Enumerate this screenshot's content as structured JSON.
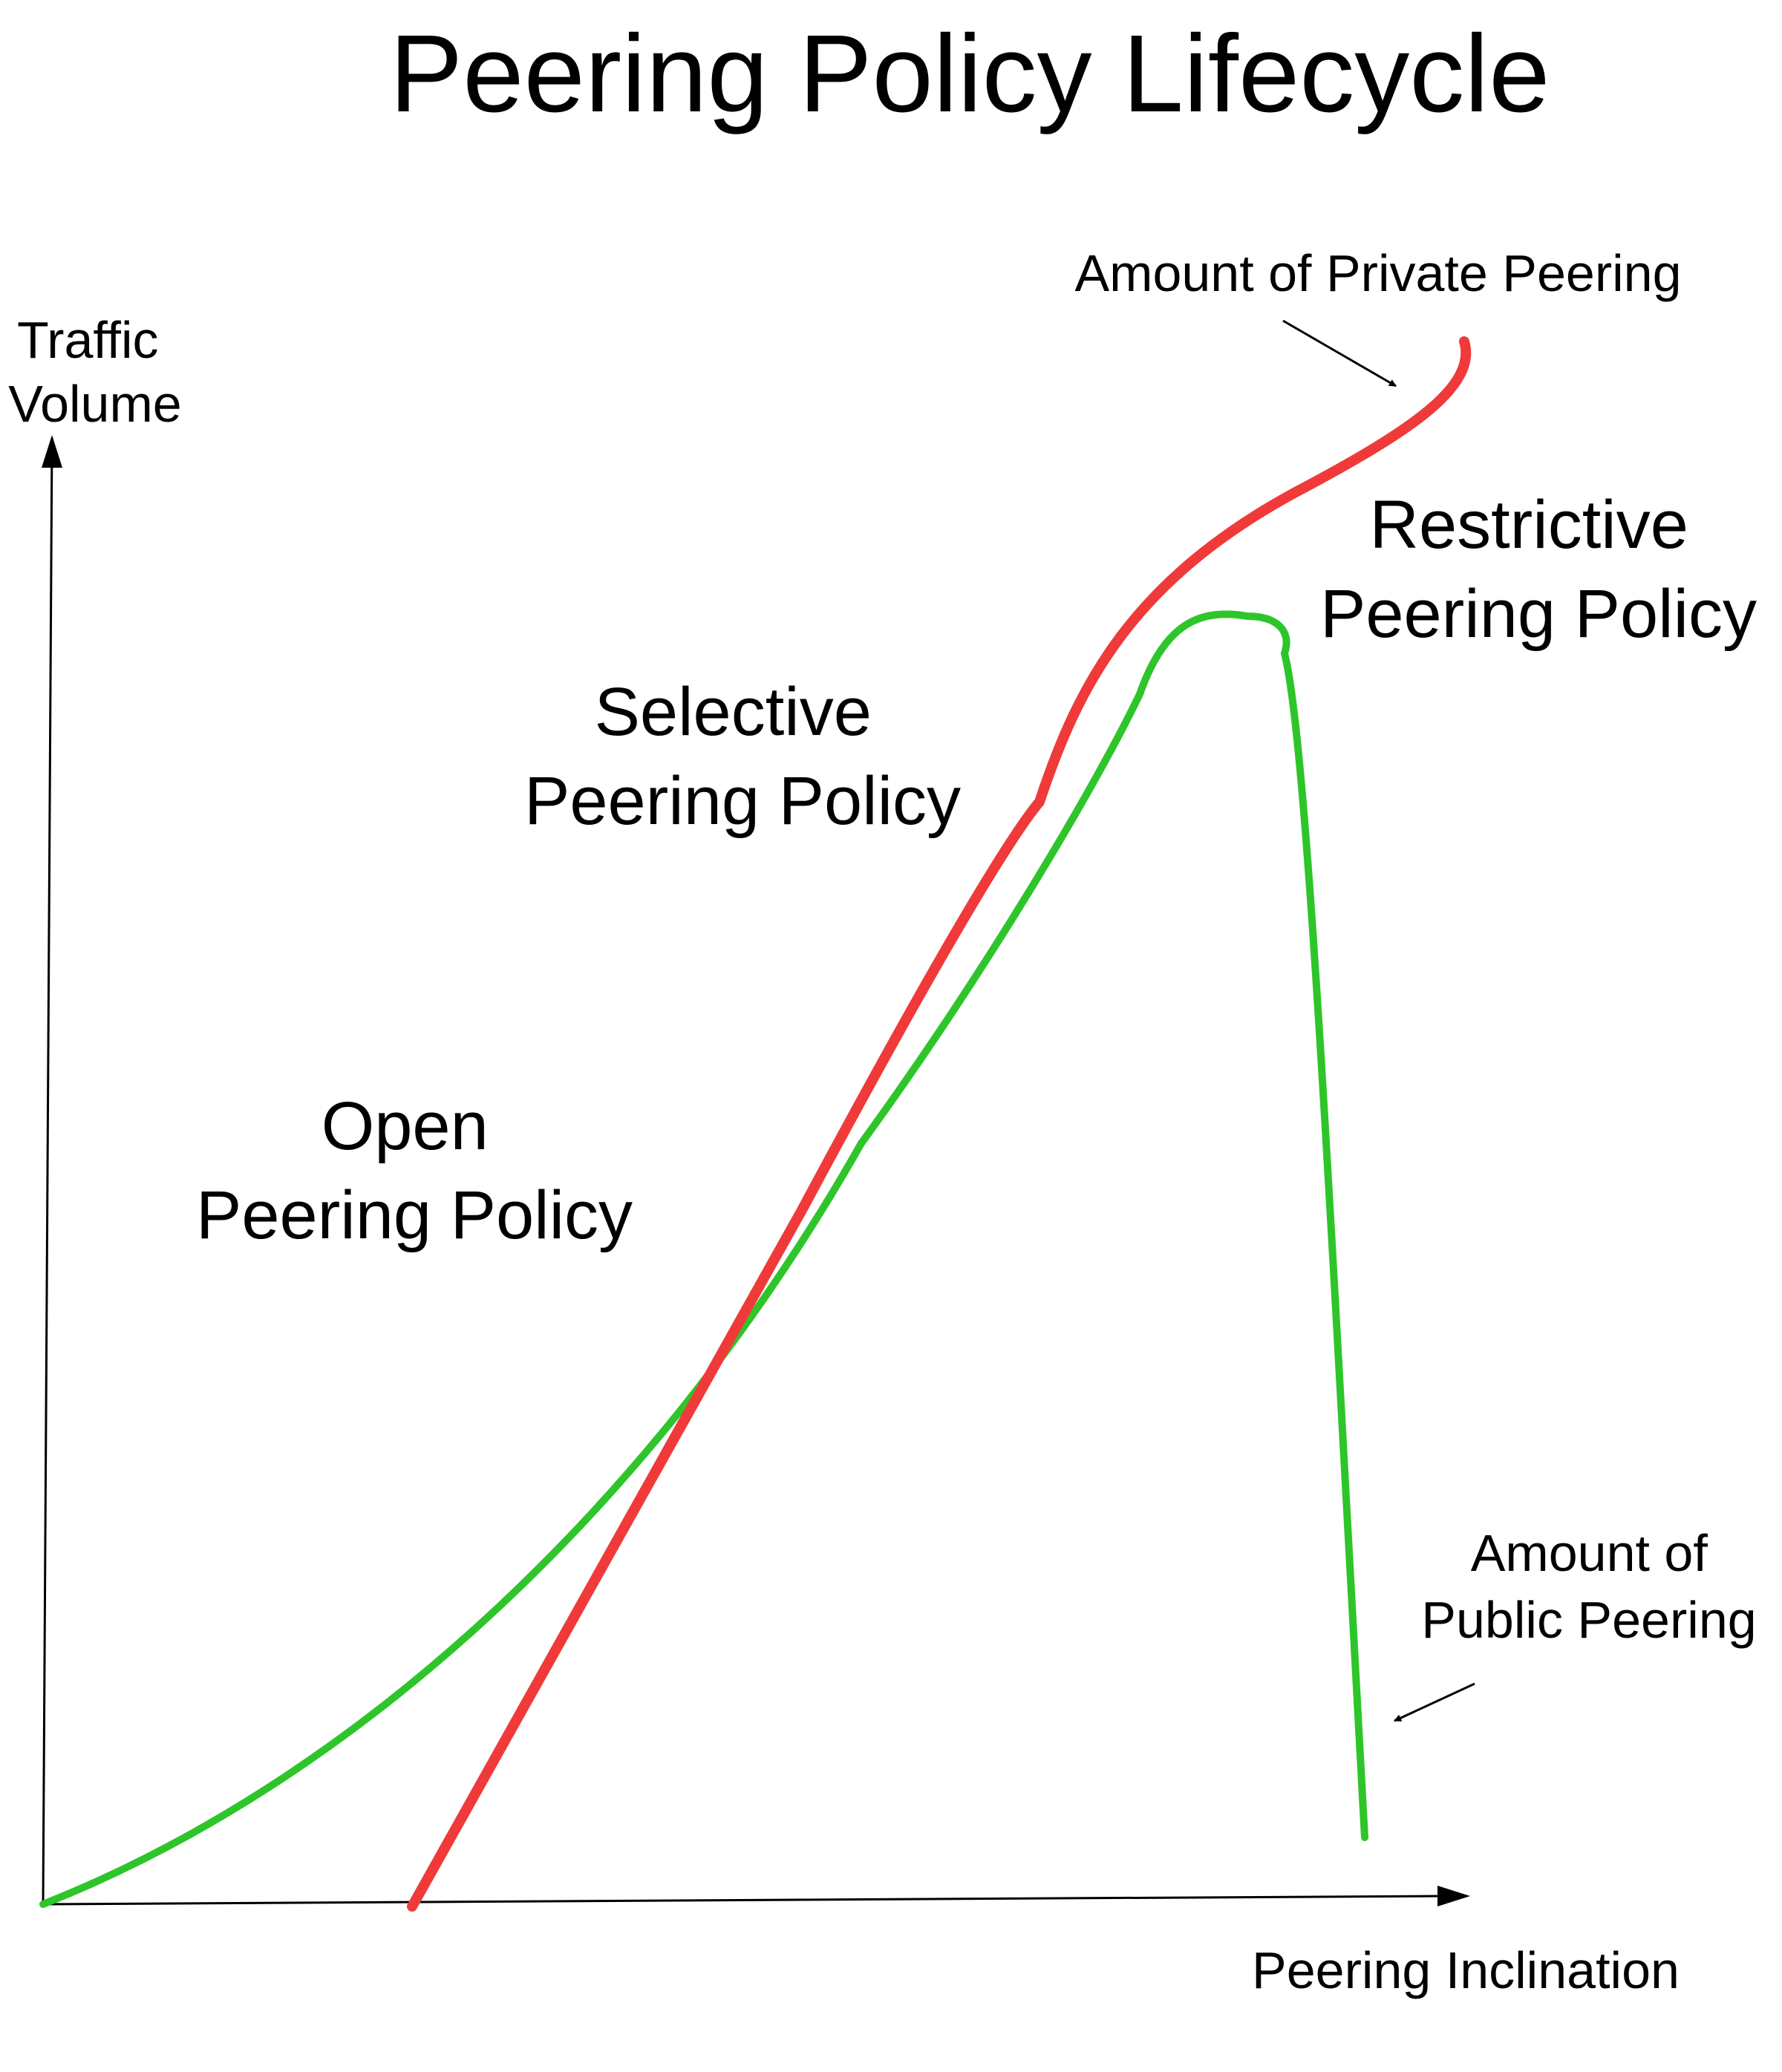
{
  "title": "Peering Policy Lifecycle",
  "axes": {
    "y_label_lines": [
      "Traffic",
      "Volume"
    ],
    "x_label": "Peering Inclination"
  },
  "regions": {
    "open": [
      "Open",
      "Peering Policy"
    ],
    "selective": [
      "Selective",
      "Peering Policy"
    ],
    "restrictive": [
      "Restrictive",
      "Peering Policy"
    ]
  },
  "callouts": {
    "private": [
      "Amount of Private Peering"
    ],
    "public": [
      "Amount of",
      "Public Peering"
    ]
  },
  "colors": {
    "private_curve": "#f03a3a",
    "public_curve": "#2ec52a",
    "axes": "#000000"
  }
}
